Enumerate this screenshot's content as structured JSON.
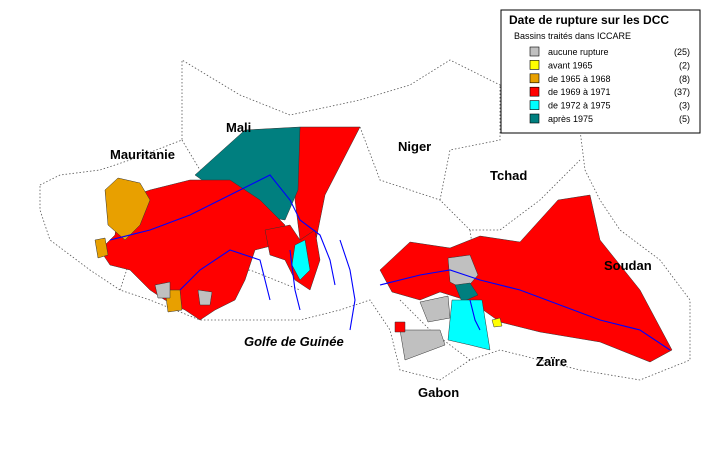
{
  "legend": {
    "title": "Date de rupture sur les DCC",
    "subtitle": "Bassins traités dans ICCARE",
    "items": [
      {
        "label": "aucune rupture",
        "count": "(25)",
        "color": "#c0c0c0"
      },
      {
        "label": "avant 1965",
        "count": "(2)",
        "color": "#ffff00"
      },
      {
        "label": "de 1965 à 1968",
        "count": "(8)",
        "color": "#e8a000"
      },
      {
        "label": "de 1969 à 1971",
        "count": "(37)",
        "color": "#ff0000"
      },
      {
        "label": "de 1972 à 1975",
        "count": "(3)",
        "color": "#00ffff"
      },
      {
        "label": "après 1975",
        "count": "(5)",
        "color": "#007f7f"
      }
    ]
  },
  "labels": {
    "mauritanie": "Mauritanie",
    "mali": "Mali",
    "niger": "Niger",
    "tchad": "Tchad",
    "soudan": "Soudan",
    "zaire": "Zaïre",
    "gabon": "Gabon",
    "golfe": "Golfe de Guinée"
  }
}
